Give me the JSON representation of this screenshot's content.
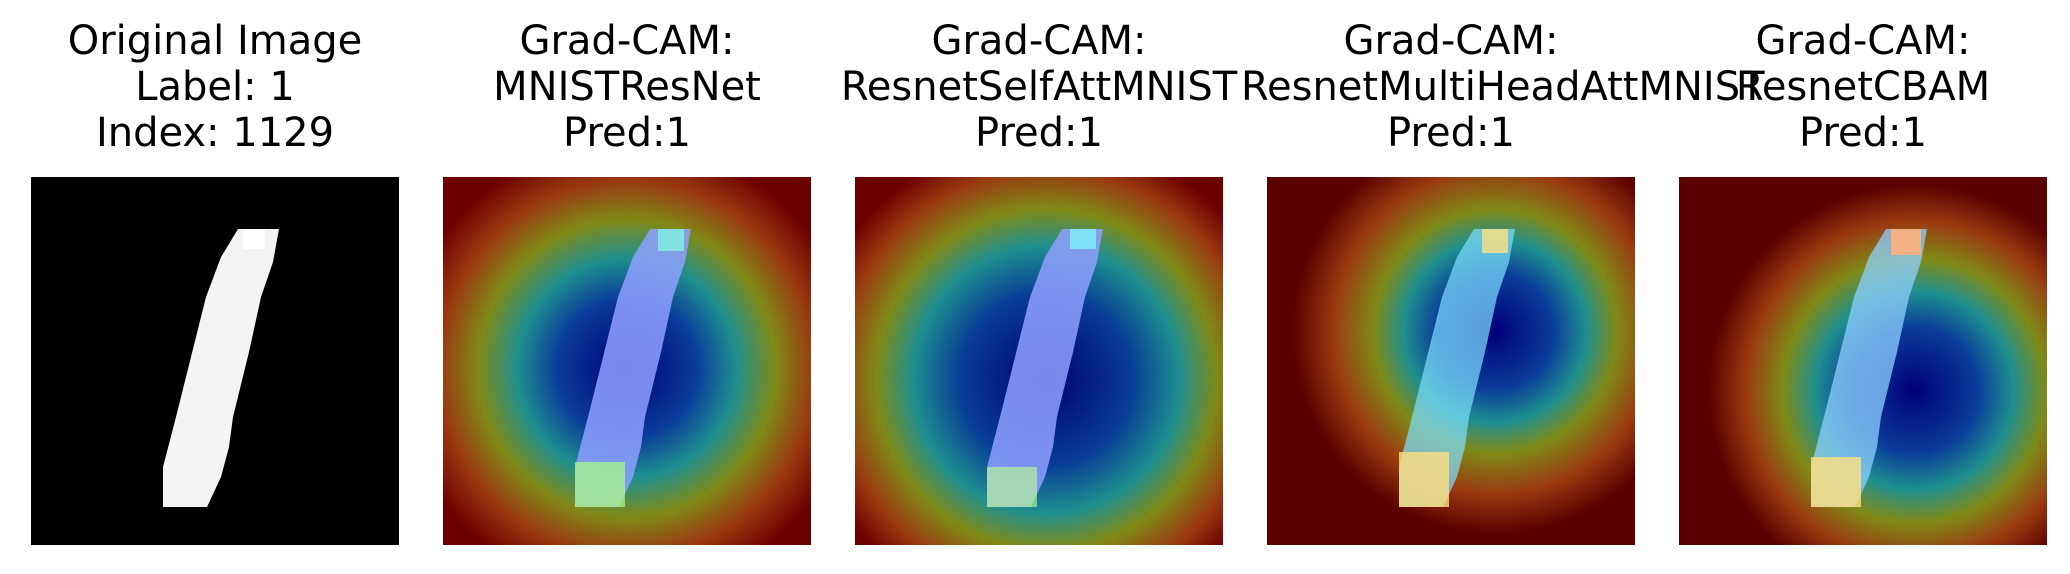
{
  "panels": [
    {
      "lines": [
        "Original Image",
        "Label: 1",
        "Index: 1129"
      ],
      "kind": "original"
    },
    {
      "lines": [
        "Grad-CAM:",
        "MNISTResNet",
        "Pred:1"
      ],
      "kind": "gradcam"
    },
    {
      "lines": [
        "Grad-CAM:",
        "ResnetSelfAttMNIST",
        "Pred:1"
      ],
      "kind": "gradcam"
    },
    {
      "lines": [
        "Grad-CAM:",
        "ResnetMultiHeadAttMNIST",
        "Pred:1"
      ],
      "kind": "gradcam"
    },
    {
      "lines": [
        "Grad-CAM:",
        "ResnetCBAM",
        "Pred:1"
      ],
      "kind": "gradcam"
    }
  ],
  "colors": {
    "background": "#000000",
    "digit": "#ffffff",
    "heat_low": "#00007a",
    "heat_mid": "#1e8f8f",
    "heat_high": "#7a0000",
    "hot_spot": "#ffd080",
    "digit_overlay": "#8fa0ff"
  }
}
